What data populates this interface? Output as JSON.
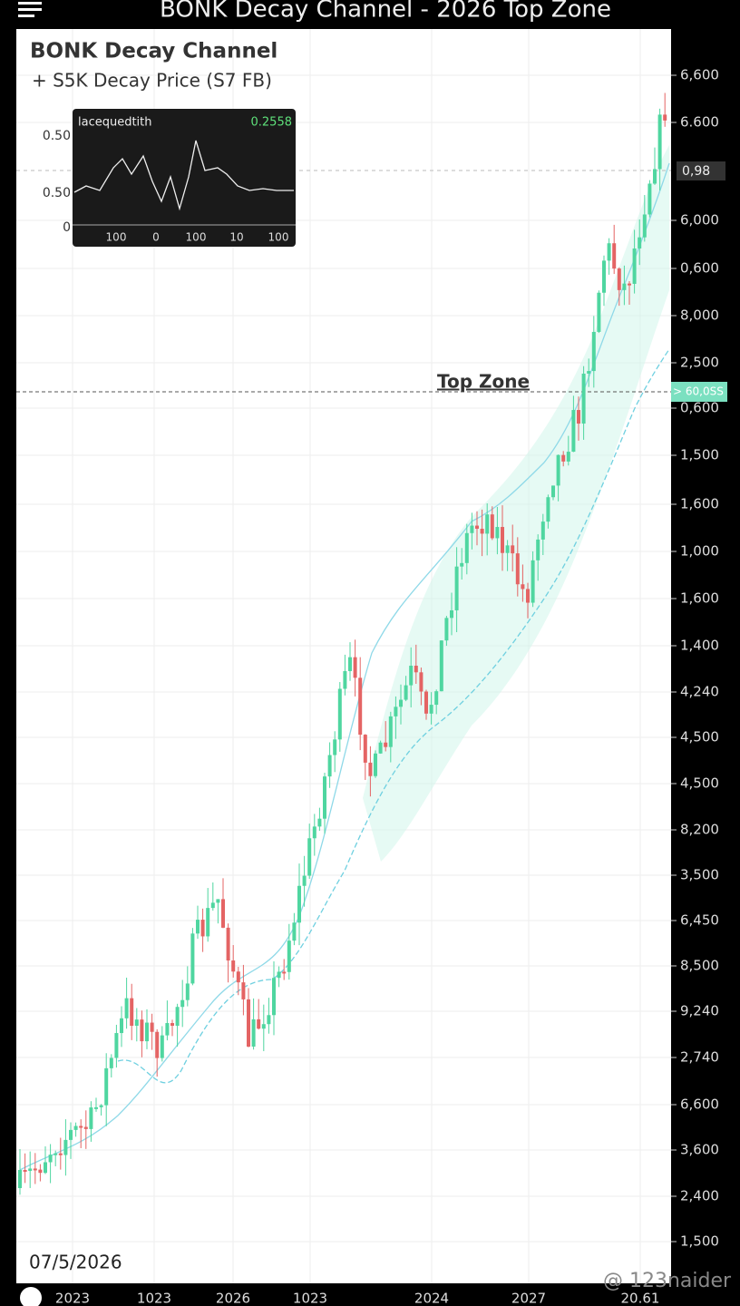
{
  "header": {
    "title": "BONK Decay Channel - 2026 Top Zone"
  },
  "chart": {
    "title": "BONK Decay Channel",
    "subtitle": "+ S5K Decay Price  (S7  FB)",
    "annotation": "Top Zone",
    "date": "07/5/2026",
    "price_tags": [
      "0,98 ",
      "> 60,0SS"
    ],
    "y_axis_labels": [
      "6,600",
      "6.600",
      "6,000",
      "0,600",
      "8,000",
      "2,500",
      "0,600",
      "1,500",
      "1,600",
      "1,000",
      "1,600",
      "1,400",
      "4,240",
      "4,500",
      "4,500",
      "8,200",
      "3,500",
      "6,450",
      "8,500",
      "9,240",
      "2,740",
      "6,600",
      "3,600",
      "2,400",
      "1,500"
    ],
    "x_axis_labels": [
      "2023",
      "1023",
      "2026",
      "1023",
      "2024",
      "2027",
      "20.61"
    ]
  },
  "inset": {
    "title": "lacequedtith",
    "value": "0.2558",
    "y_labels": [
      "0.50",
      "0.50",
      "0"
    ],
    "x_labels": [
      "100",
      "0",
      "100",
      "10",
      "100"
    ]
  },
  "watermark": "@ 123naider"
}
